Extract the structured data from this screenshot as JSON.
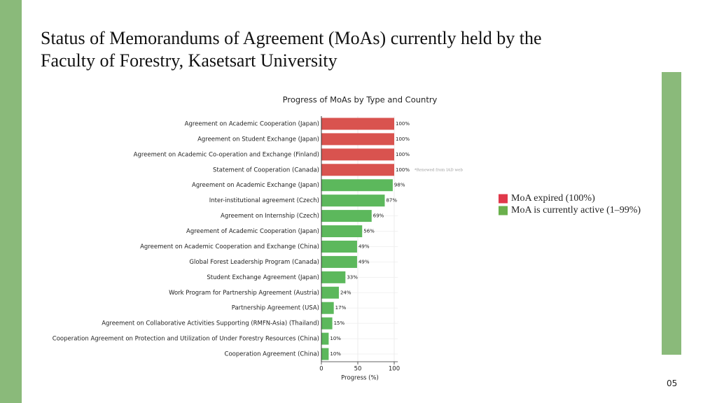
{
  "slide": {
    "title_lines": [
      "Status of Memorandums of Agreement (MoAs) currently held by the",
      "Faculty of Forestry, Kasetsart University"
    ],
    "page_number": "05"
  },
  "chart_data": {
    "type": "barh",
    "title": "Progress of MoAs by Type and Country",
    "x_label": "Progress (%)",
    "categories": [
      "Agreement on Academic Cooperation (Japan)",
      "Agreement on Student Exchange (Japan)",
      "Agreement on Academic Co-operation and Exchange (Finland)",
      "Statement of Cooperation (Canada)",
      "Agreement on Academic Exchange (Japan)",
      "Inter-institutional agreement (Czech)",
      "Agreement on Internship (Czech)",
      "Agreement of Academic Cooperation (Japan)",
      "Agreement on Academic Cooperation and Exchange (China)",
      "Global Forest Leadership Program (Canada)",
      "Student Exchange Agreement (Japan)",
      "Work Program for Partnership Agreement (Austria)",
      "Partnership Agreement (USA)",
      "Agreement on Collaborative Activities Supporting (RMFN-Asia) (Thailand)",
      "Cooperation Agreement on Protection and Utilization of Under Forestry Resources (China)",
      "Cooperation Agreement (China)"
    ],
    "values": [
      100,
      100,
      100,
      100,
      98,
      87,
      69,
      56,
      49,
      49,
      33,
      24,
      17,
      15,
      10,
      10
    ],
    "value_labels": [
      "100%",
      "100%",
      "100%",
      "100%",
      "98%",
      "87%",
      "69%",
      "56%",
      "49%",
      "49%",
      "33%",
      "24%",
      "17%",
      "15%",
      "10%",
      "10%"
    ],
    "colors": [
      "#d9534f",
      "#d9534f",
      "#d9534f",
      "#d9534f",
      "#5cb85c",
      "#5cb85c",
      "#5cb85c",
      "#5cb85c",
      "#5cb85c",
      "#5cb85c",
      "#5cb85c",
      "#5cb85c",
      "#5cb85c",
      "#5cb85c",
      "#5cb85c",
      "#5cb85c"
    ],
    "annotation": "*Renewed from IAD web",
    "xlim": [
      0,
      105
    ],
    "xticks": [
      0,
      50,
      100
    ],
    "grid": true,
    "legend": [
      {
        "label": "MoA expired (100%)",
        "color": "#e0384a"
      },
      {
        "label": "MoA is currently active (1–99%)",
        "color": "#6ab04c"
      }
    ]
  }
}
